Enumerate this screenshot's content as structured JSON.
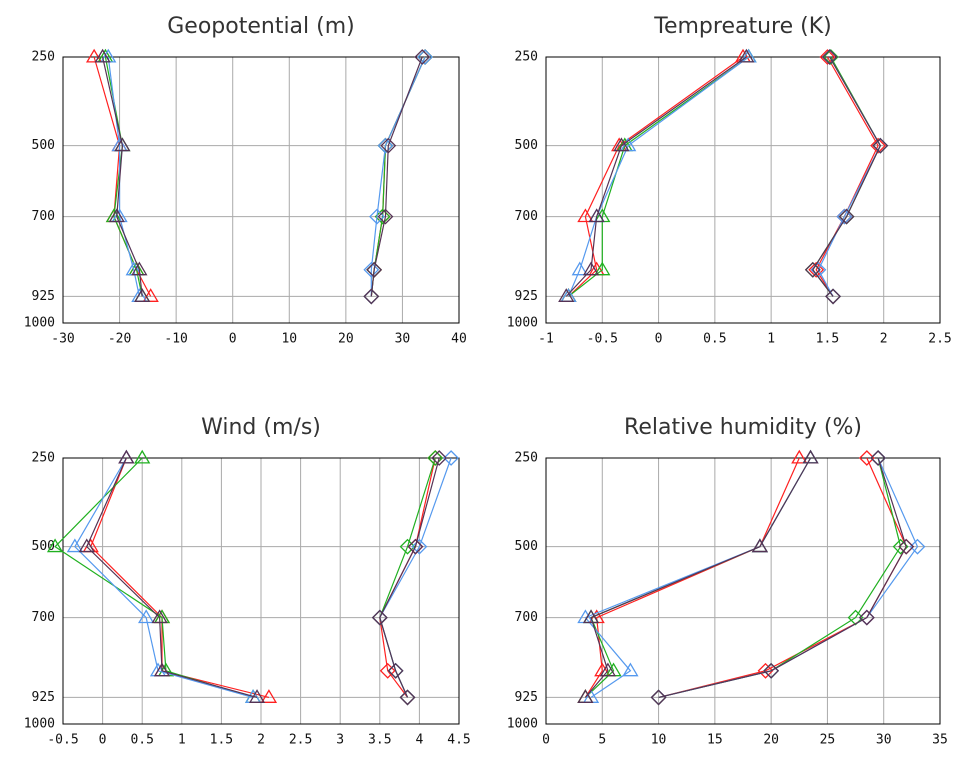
{
  "chart_data": [
    {
      "type": "line",
      "orientation": "horizontal",
      "title": "Geopotential (m)",
      "y": [
        250,
        500,
        700,
        850,
        925
      ],
      "ylim": [
        1000,
        250
      ],
      "yticks": [
        250,
        500,
        700,
        925,
        1000
      ],
      "xlim": [
        -30,
        40
      ],
      "xticks": [
        -30,
        -20,
        -10,
        0,
        10,
        20,
        30,
        40
      ],
      "grid": true,
      "series": [
        {
          "color": "#ff2020",
          "marker": "triangle",
          "values": [
            -24.5,
            -20,
            -21,
            -17,
            -14.5
          ]
        },
        {
          "color": "#20b020",
          "marker": "triangle",
          "values": [
            -22.5,
            -19.5,
            -21,
            -17,
            -16
          ]
        },
        {
          "color": "#5599ee",
          "marker": "triangle",
          "values": [
            -22,
            -20,
            -20,
            -17.5,
            -16.5
          ]
        },
        {
          "color": "#553355",
          "marker": "triangle",
          "values": [
            -23,
            -19.5,
            -20.5,
            -16.5,
            -16
          ]
        },
        {
          "color": "#ff2020",
          "marker": "diamond",
          "values": [
            34,
            27,
            26.5,
            25,
            24.5
          ]
        },
        {
          "color": "#20b020",
          "marker": "diamond",
          "values": [
            34,
            27,
            26.5,
            25,
            24.5
          ]
        },
        {
          "color": "#5599ee",
          "marker": "diamond",
          "values": [
            34,
            27,
            25.5,
            24.5,
            24.5
          ]
        },
        {
          "color": "#553355",
          "marker": "diamond",
          "values": [
            33.5,
            27.5,
            27,
            25,
            24.5
          ]
        }
      ]
    },
    {
      "type": "line",
      "orientation": "horizontal",
      "title": "Tempreature (K)",
      "y": [
        250,
        500,
        700,
        850,
        925
      ],
      "ylim": [
        1000,
        250
      ],
      "yticks": [
        250,
        500,
        700,
        925,
        1000
      ],
      "xlim": [
        -1,
        2.5
      ],
      "xticks": [
        -1,
        -0.5,
        0,
        0.5,
        1,
        1.5,
        2,
        2.5
      ],
      "grid": true,
      "series": [
        {
          "color": "#ff2020",
          "marker": "triangle",
          "values": [
            0.75,
            -0.35,
            -0.65,
            -0.55,
            -0.8
          ]
        },
        {
          "color": "#20b020",
          "marker": "triangle",
          "values": [
            0.8,
            -0.3,
            -0.5,
            -0.5,
            -0.8
          ]
        },
        {
          "color": "#5599ee",
          "marker": "triangle",
          "values": [
            0.8,
            -0.27,
            -0.55,
            -0.7,
            -0.8
          ]
        },
        {
          "color": "#553355",
          "marker": "triangle",
          "values": [
            0.78,
            -0.33,
            -0.55,
            -0.6,
            -0.82
          ]
        },
        {
          "color": "#ff2020",
          "marker": "diamond",
          "values": [
            1.5,
            1.95,
            1.65,
            1.4,
            1.55
          ]
        },
        {
          "color": "#20b020",
          "marker": "diamond",
          "values": [
            1.53,
            1.97,
            1.67,
            1.37,
            1.55
          ]
        },
        {
          "color": "#5599ee",
          "marker": "diamond",
          "values": [
            1.52,
            1.97,
            1.65,
            1.42,
            1.55
          ]
        },
        {
          "color": "#553355",
          "marker": "diamond",
          "values": [
            1.52,
            1.97,
            1.67,
            1.37,
            1.55
          ]
        }
      ]
    },
    {
      "type": "line",
      "orientation": "horizontal",
      "title": "Wind (m/s)",
      "y": [
        250,
        500,
        700,
        850,
        925
      ],
      "ylim": [
        1000,
        250
      ],
      "yticks": [
        250,
        500,
        700,
        925,
        1000
      ],
      "xlim": [
        -0.5,
        4.5
      ],
      "xticks": [
        -0.5,
        0,
        0.5,
        1,
        1.5,
        2,
        2.5,
        3,
        3.5,
        4,
        4.5
      ],
      "grid": true,
      "series": [
        {
          "color": "#ff2020",
          "marker": "triangle",
          "values": [
            0.3,
            -0.15,
            0.75,
            0.75,
            2.1
          ]
        },
        {
          "color": "#20b020",
          "marker": "triangle",
          "values": [
            0.5,
            -0.6,
            0.75,
            0.8,
            1.9
          ]
        },
        {
          "color": "#5599ee",
          "marker": "triangle",
          "values": [
            0.3,
            -0.35,
            0.55,
            0.7,
            1.9
          ]
        },
        {
          "color": "#553355",
          "marker": "triangle",
          "values": [
            0.3,
            -0.2,
            0.72,
            0.75,
            1.95
          ]
        },
        {
          "color": "#ff2020",
          "marker": "diamond",
          "values": [
            4.2,
            3.95,
            3.5,
            3.6,
            3.85
          ]
        },
        {
          "color": "#20b020",
          "marker": "diamond",
          "values": [
            4.2,
            3.85,
            3.5,
            3.7,
            3.85
          ]
        },
        {
          "color": "#5599ee",
          "marker": "diamond",
          "values": [
            4.4,
            4.0,
            3.5,
            3.7,
            3.85
          ]
        },
        {
          "color": "#553355",
          "marker": "diamond",
          "values": [
            4.25,
            3.95,
            3.5,
            3.7,
            3.85
          ]
        }
      ]
    },
    {
      "type": "line",
      "orientation": "horizontal",
      "title": "Relative humidity (%)",
      "y": [
        250,
        500,
        700,
        850,
        925
      ],
      "ylim": [
        1000,
        250
      ],
      "yticks": [
        250,
        500,
        700,
        925,
        1000
      ],
      "xlim": [
        0,
        35
      ],
      "xticks": [
        0,
        5,
        10,
        15,
        20,
        25,
        30,
        35
      ],
      "grid": true,
      "series": [
        {
          "color": "#ff2020",
          "marker": "triangle",
          "values": [
            22.5,
            19,
            4.5,
            5,
            3.5
          ]
        },
        {
          "color": "#20b020",
          "marker": "triangle",
          "values": [
            23.5,
            19,
            4,
            6,
            3.5
          ]
        },
        {
          "color": "#5599ee",
          "marker": "triangle",
          "values": [
            23.5,
            19,
            3.5,
            7.5,
            4
          ]
        },
        {
          "color": "#553355",
          "marker": "triangle",
          "values": [
            23.5,
            19,
            4,
            5.5,
            3.5
          ]
        },
        {
          "color": "#ff2020",
          "marker": "diamond",
          "values": [
            28.5,
            32,
            28.5,
            19.5,
            10
          ]
        },
        {
          "color": "#20b020",
          "marker": "diamond",
          "values": [
            29.5,
            31.5,
            27.5,
            20,
            10
          ]
        },
        {
          "color": "#5599ee",
          "marker": "diamond",
          "values": [
            29.5,
            33,
            28.5,
            20,
            10
          ]
        },
        {
          "color": "#553355",
          "marker": "diamond",
          "values": [
            29.5,
            32,
            28.5,
            20,
            10
          ]
        }
      ]
    }
  ]
}
